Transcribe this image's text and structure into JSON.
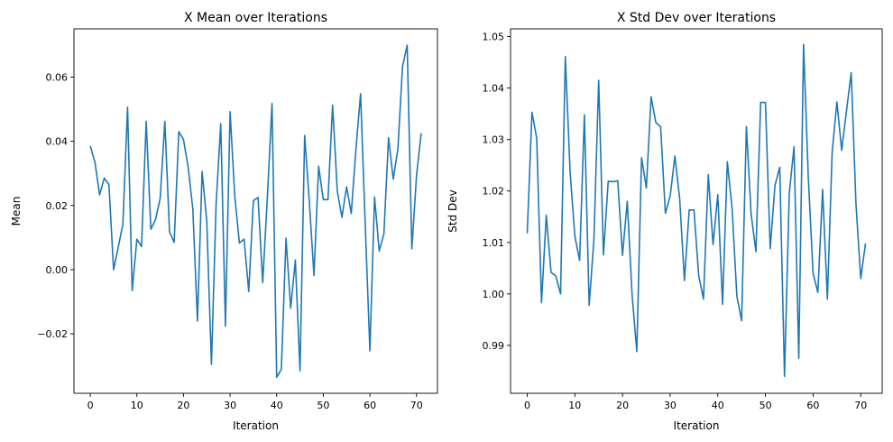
{
  "chart_data": [
    {
      "type": "line",
      "title": "X Mean over Iterations",
      "xlabel": "Iteration",
      "ylabel": "Mean",
      "xlim": [
        -3.5,
        74.5
      ],
      "ylim": [
        -0.0385,
        0.075
      ],
      "xticks": [
        0,
        10,
        20,
        30,
        40,
        50,
        60,
        70
      ],
      "xtick_labels": [
        "0",
        "10",
        "20",
        "30",
        "40",
        "50",
        "60",
        "70"
      ],
      "yticks": [
        -0.02,
        0.0,
        0.02,
        0.04,
        0.06
      ],
      "ytick_labels": [
        "−0.02",
        "0.00",
        "0.02",
        "0.04",
        "0.06"
      ],
      "grid": false,
      "line_color": "#1f77b4",
      "series": [
        {
          "x": [
            0,
            1,
            2,
            3,
            4,
            5,
            6,
            7,
            8,
            9,
            10,
            11,
            12,
            13,
            14,
            15,
            16,
            17,
            18,
            19,
            20,
            21,
            22,
            23,
            24,
            25,
            26,
            27,
            28,
            29,
            30,
            31,
            32,
            33,
            34,
            35,
            36,
            37,
            38,
            39,
            40,
            41,
            42,
            43,
            44,
            45,
            46,
            47,
            48,
            49,
            50,
            51,
            52,
            53,
            54,
            55,
            56,
            57,
            58,
            59,
            60,
            61,
            62,
            63,
            64,
            65,
            66,
            67,
            68,
            69,
            70,
            71
          ],
          "values": [
            0.0385,
            0.0335,
            0.0233,
            0.0285,
            0.0265,
            0.0,
            0.007,
            0.0142,
            0.0506,
            -0.0065,
            0.0095,
            0.0072,
            0.0462,
            0.0126,
            0.0156,
            0.0222,
            0.0462,
            0.0118,
            0.0085,
            0.043,
            0.0405,
            0.032,
            0.019,
            -0.016,
            0.0306,
            0.015,
            -0.0295,
            0.0205,
            0.0455,
            -0.0176,
            0.0492,
            0.023,
            0.0083,
            0.0095,
            -0.0068,
            0.0215,
            0.0225,
            -0.004,
            0.0226,
            0.0518,
            -0.0335,
            -0.031,
            0.0098,
            -0.012,
            0.003,
            -0.0315,
            0.0418,
            0.0212,
            -0.0018,
            0.0322,
            0.0218,
            0.0218,
            0.0512,
            0.0245,
            0.0163,
            0.0258,
            0.0175,
            0.0375,
            0.0548,
            0.014,
            -0.0253,
            0.0226,
            0.0058,
            0.0111,
            0.0411,
            0.0282,
            0.0375,
            0.0633,
            0.0699,
            0.0065,
            0.0292,
            0.0425
          ]
        }
      ]
    },
    {
      "type": "line",
      "title": "X Std Dev over Iterations",
      "xlabel": "Iteration",
      "ylabel": "Std Dev",
      "xlim": [
        -3.5,
        74.5
      ],
      "ylim": [
        0.9807,
        1.0515
      ],
      "xticks": [
        0,
        10,
        20,
        30,
        40,
        50,
        60,
        70
      ],
      "xtick_labels": [
        "0",
        "10",
        "20",
        "30",
        "40",
        "50",
        "60",
        "70"
      ],
      "yticks": [
        0.99,
        1.0,
        1.01,
        1.02,
        1.03,
        1.04,
        1.05
      ],
      "ytick_labels": [
        "0.99",
        "1.00",
        "1.01",
        "1.02",
        "1.03",
        "1.04",
        "1.05"
      ],
      "grid": false,
      "line_color": "#1f77b4",
      "series": [
        {
          "x": [
            0,
            1,
            2,
            3,
            4,
            5,
            6,
            7,
            8,
            9,
            10,
            11,
            12,
            13,
            14,
            15,
            16,
            17,
            18,
            19,
            20,
            21,
            22,
            23,
            24,
            25,
            26,
            27,
            28,
            29,
            30,
            31,
            32,
            33,
            34,
            35,
            36,
            37,
            38,
            39,
            40,
            41,
            42,
            43,
            44,
            45,
            46,
            47,
            48,
            49,
            50,
            51,
            52,
            53,
            54,
            55,
            56,
            57,
            58,
            59,
            60,
            61,
            62,
            63,
            64,
            65,
            66,
            67,
            68,
            69,
            70,
            71
          ],
          "values": [
            1.0118,
            1.0353,
            1.0302,
            0.9983,
            1.0153,
            1.0042,
            1.0035,
            1.0,
            1.0461,
            1.0237,
            1.0112,
            1.0065,
            1.0348,
            0.9978,
            1.0106,
            1.0415,
            1.0076,
            1.0219,
            1.0218,
            1.022,
            1.0075,
            1.018,
            1.0,
            0.9888,
            1.0265,
            1.0206,
            1.0383,
            1.0333,
            1.0325,
            1.0157,
            1.019,
            1.0268,
            1.0185,
            1.0026,
            1.0163,
            1.0163,
            1.0035,
            0.999,
            1.0232,
            1.0096,
            1.0193,
            0.998,
            1.0257,
            1.0166,
            0.9996,
            0.9948,
            1.0325,
            1.0155,
            1.0082,
            1.0372,
            1.0372,
            1.0088,
            1.0211,
            1.0246,
            0.984,
            1.0195,
            1.0286,
            0.9875,
            1.0485,
            1.0225,
            1.004,
            1.0003,
            1.0203,
            0.999,
            1.0275,
            1.0373,
            1.0279,
            1.0355,
            1.043,
            1.0175,
            1.003,
            1.0098
          ]
        }
      ]
    }
  ]
}
